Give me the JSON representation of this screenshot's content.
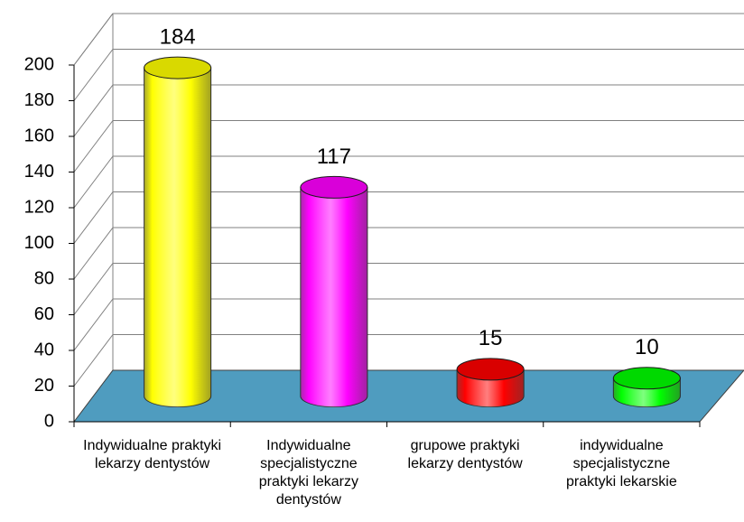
{
  "chart_data": {
    "type": "bar",
    "categories": [
      "Indywidualne praktyki lekarzy dentystów",
      "Indywidualne specjalistyczne praktyki lekarzy dentystów",
      "grupowe praktyki lekarzy dentystów",
      "indywidualne specjalistyczne praktyki lekarskie"
    ],
    "values": [
      184,
      117,
      15,
      10
    ],
    "colors": [
      "#ffff00",
      "#ff00ff",
      "#ff0000",
      "#00ff00"
    ],
    "ylim": [
      0,
      200
    ],
    "yticks": [
      0,
      20,
      40,
      60,
      80,
      100,
      120,
      140,
      160,
      180,
      200
    ],
    "grid": true
  }
}
